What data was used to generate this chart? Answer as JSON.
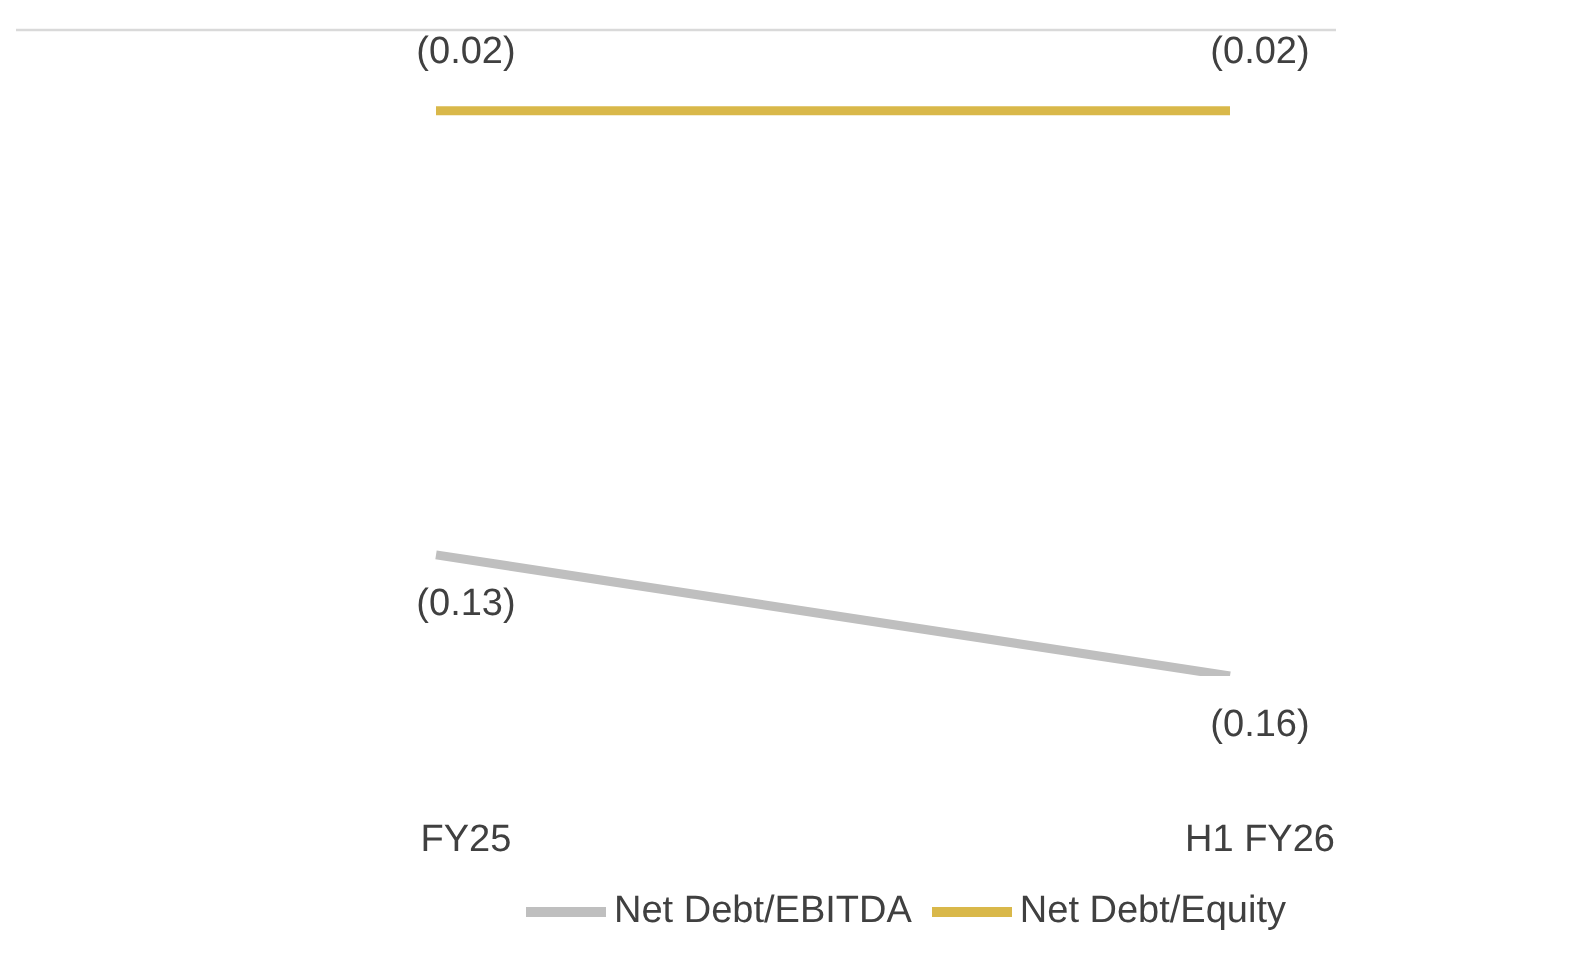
{
  "chart_data": {
    "type": "line",
    "categories": [
      "FY25",
      "H1 FY26"
    ],
    "series": [
      {
        "name": "Net Debt/Equity",
        "color": "#d9b84a",
        "values": [
          -0.02,
          -0.02
        ],
        "value_labels": [
          "(0.02)",
          "(0.02)"
        ]
      },
      {
        "name": "Net Debt/EBITDA",
        "color": "#bfbfbf",
        "values": [
          -0.13,
          -0.16
        ],
        "value_labels": [
          "(0.13)",
          "(0.16)"
        ]
      }
    ],
    "legend": "bottom",
    "marker": "none",
    "line_style": "solid",
    "tick_labels": "x"
  }
}
